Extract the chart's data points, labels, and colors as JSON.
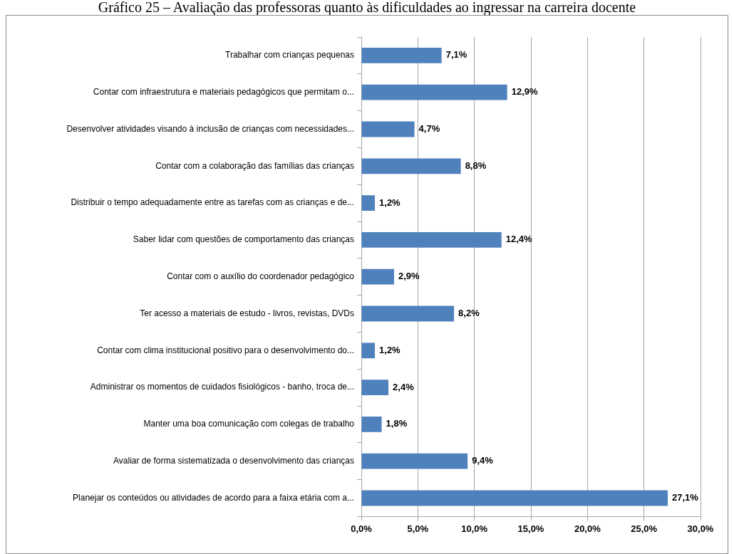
{
  "chart_data": {
    "type": "bar",
    "orientation": "horizontal",
    "title": "Gráfico 25 – Avaliação das professoras quanto às dificuldades ao ingressar na carreira docente",
    "categories": [
      "Trabalhar com crianças pequenas",
      "Contar com infraestrutura e materiais pedagógicos que permitam o...",
      "Desenvolver atividades visando à inclusão de crianças com necessidades...",
      "Contar com a colaboração das famílias das crianças",
      "Distribuir o tempo adequadamente entre as tarefas com as crianças e de...",
      "Saber lidar com questões de comportamento das crianças",
      "Contar com o auxílio do coordenador pedagógico",
      "Ter acesso a materiais de estudo - livros, revistas, DVDs",
      "Contar com clima institucional positivo para o desenvolvimento do...",
      "Administrar os momentos de cuidados fisiológicos - banho, troca de...",
      "Manter uma boa comunicação com colegas de trabalho",
      "Avaliar de forma sistematizada o desenvolvimento das crianças",
      "Planejar os conteúdos ou atividades de acordo para a faixa etária com a..."
    ],
    "values": [
      7.1,
      12.9,
      4.7,
      8.8,
      1.2,
      12.4,
      2.9,
      8.2,
      1.2,
      2.4,
      1.8,
      9.4,
      27.1
    ],
    "value_labels": [
      "7,1%",
      "12,9%",
      "4,7%",
      "8,8%",
      "1,2%",
      "12,4%",
      "2,9%",
      "8,2%",
      "1,2%",
      "2,4%",
      "1,8%",
      "9,4%",
      "27,1%"
    ],
    "color": "#4f81bd",
    "xlim": [
      0,
      30
    ],
    "xticks": [
      {
        "value": 0,
        "label": "0,0%"
      },
      {
        "value": 5,
        "label": "5,0%"
      },
      {
        "value": 10,
        "label": "10,0%"
      },
      {
        "value": 15,
        "label": "15,0%"
      },
      {
        "value": 20,
        "label": "20,0%"
      },
      {
        "value": 25,
        "label": "25,0%"
      },
      {
        "value": 30,
        "label": "30,0%"
      }
    ],
    "grid": "x"
  }
}
